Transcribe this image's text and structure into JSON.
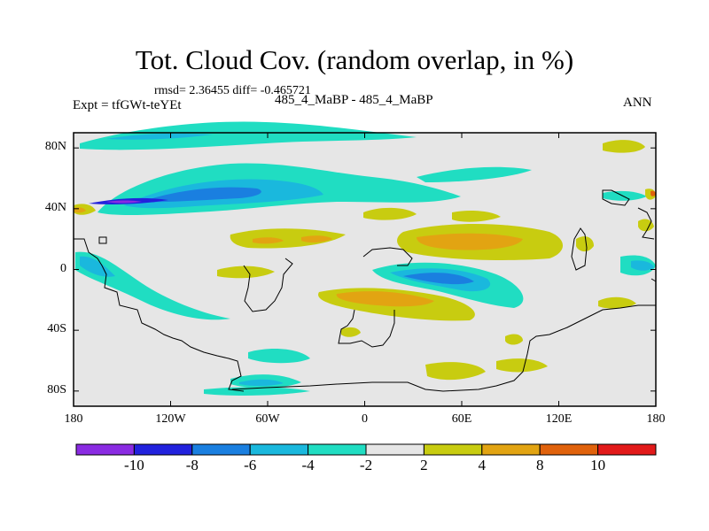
{
  "title": "Tot. Cloud Cov. (random overlap, in %)",
  "stats": "rmsd= 2.36455 diff= -0.465721",
  "experiment": "Expt = tfGWt-teYEt",
  "case_label": "485_4_MaBP - 485_4_MaBP",
  "season": "ANN",
  "map": {
    "projection": "cylindrical-equidistant",
    "lon_range": [
      -180,
      180
    ],
    "lat_range": [
      -90,
      90
    ],
    "lon_ticks": [
      "180",
      "120W",
      "60W",
      "0",
      "60E",
      "120E",
      "180"
    ],
    "lat_ticks": [
      "80N",
      "40N",
      "0",
      "40S",
      "80S"
    ],
    "lon_tick_values": [
      -180,
      -120,
      -60,
      0,
      60,
      120,
      180
    ],
    "lat_tick_values": [
      80,
      40,
      0,
      -40,
      -80
    ]
  },
  "colorbar": {
    "levels": [
      -10,
      -8,
      -6,
      -4,
      -2,
      2,
      4,
      8,
      10
    ],
    "labels": [
      "-10",
      "-8",
      "-6",
      "-4",
      "-2",
      "2",
      "4",
      "8",
      "10"
    ],
    "colors": [
      "#8a2be2",
      "#2222dd",
      "#1a7fe0",
      "#1ab8dd",
      "#20ddc2",
      "#e6e6e6",
      "#c8cc10",
      "#e2a412",
      "#e0620c",
      "#e21a1a"
    ]
  },
  "colors": {
    "background": "#e6e6e6",
    "coast": "#000000"
  }
}
